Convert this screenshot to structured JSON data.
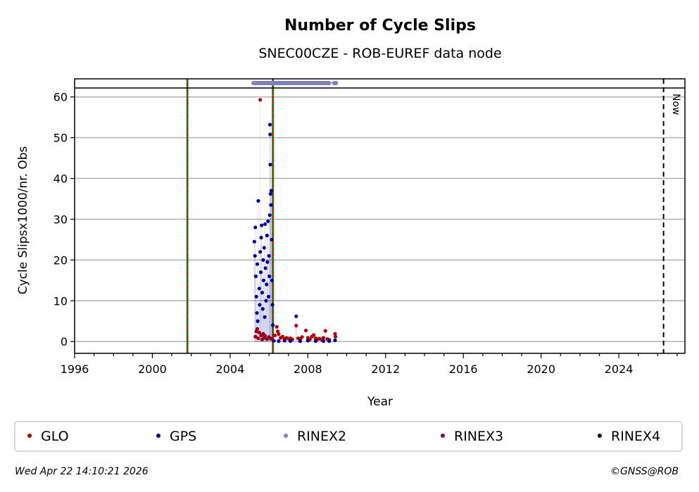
{
  "chart_data": {
    "type": "scatter",
    "title": "Number of Cycle Slips",
    "subtitle": "SNEC00CZE - ROB-EUREF data node",
    "xlabel": "Year",
    "ylabel": "Cycle Slipsx1000/nr. Obs",
    "xlim": [
      1996,
      2027.4
    ],
    "ylim": [
      -2.9,
      62.2
    ],
    "xticks": [
      1996,
      2000,
      2004,
      2008,
      2012,
      2016,
      2020,
      2024
    ],
    "yticks": [
      0,
      10,
      20,
      30,
      40,
      50,
      60
    ],
    "grid": "horizontal",
    "legend_position": "bottom",
    "now_label": "Now",
    "now_year": 2026.3,
    "event_lines": [
      2001.8,
      2006.2
    ],
    "rinex2_span": [
      [
        2005.2,
        2009.1
      ],
      [
        2009.35,
        2009.45
      ]
    ],
    "series": [
      {
        "name": "GLO",
        "color": "#b00000",
        "points": [
          [
            2005.55,
            59.3
          ],
          [
            2005.3,
            1.2
          ],
          [
            2005.35,
            2.5
          ],
          [
            2005.4,
            3.1
          ],
          [
            2005.45,
            0.8
          ],
          [
            2005.5,
            2.2
          ],
          [
            2005.6,
            1.5
          ],
          [
            2005.65,
            0.5
          ],
          [
            2005.7,
            1.9
          ],
          [
            2005.75,
            0.9
          ],
          [
            2005.8,
            1.4
          ],
          [
            2005.9,
            0.6
          ],
          [
            2006.0,
            1.1
          ],
          [
            2006.1,
            0.7
          ],
          [
            2006.3,
            1.5
          ],
          [
            2006.4,
            3.6
          ],
          [
            2006.45,
            2.5
          ],
          [
            2006.5,
            1.8
          ],
          [
            2006.6,
            0.9
          ],
          [
            2006.7,
            1.2
          ],
          [
            2006.8,
            0.6
          ],
          [
            2006.9,
            0.9
          ],
          [
            2007.0,
            0.7
          ],
          [
            2007.1,
            0.8
          ],
          [
            2007.2,
            0.5
          ],
          [
            2007.4,
            3.9
          ],
          [
            2007.5,
            0.8
          ],
          [
            2007.6,
            0.6
          ],
          [
            2007.7,
            1.1
          ],
          [
            2007.9,
            2.7
          ],
          [
            2008.0,
            0.9
          ],
          [
            2008.1,
            0.5
          ],
          [
            2008.2,
            1.2
          ],
          [
            2008.3,
            1.6
          ],
          [
            2008.4,
            0.8
          ],
          [
            2008.5,
            0.6
          ],
          [
            2008.6,
            0.7
          ],
          [
            2008.7,
            0.5
          ],
          [
            2008.8,
            0.9
          ],
          [
            2008.9,
            2.6
          ],
          [
            2009.0,
            0.6
          ],
          [
            2009.1,
            0.4
          ],
          [
            2009.4,
            1.9
          ],
          [
            2009.42,
            1.2
          ]
        ]
      },
      {
        "name": "GPS",
        "color": "#000099",
        "points": [
          [
            2005.25,
            24.5
          ],
          [
            2005.28,
            21
          ],
          [
            2005.3,
            28
          ],
          [
            2005.32,
            16
          ],
          [
            2005.35,
            11
          ],
          [
            2005.38,
            7
          ],
          [
            2005.4,
            19
          ],
          [
            2005.42,
            5
          ],
          [
            2005.45,
            34.5
          ],
          [
            2005.5,
            13
          ],
          [
            2005.52,
            9
          ],
          [
            2005.55,
            22
          ],
          [
            2005.58,
            17
          ],
          [
            2005.6,
            25.5
          ],
          [
            2005.62,
            28.5
          ],
          [
            2005.65,
            12
          ],
          [
            2005.68,
            8
          ],
          [
            2005.7,
            20
          ],
          [
            2005.72,
            15
          ],
          [
            2005.75,
            23
          ],
          [
            2005.78,
            6
          ],
          [
            2005.8,
            28.8
          ],
          [
            2005.82,
            18
          ],
          [
            2005.85,
            10
          ],
          [
            2005.88,
            14
          ],
          [
            2005.9,
            26
          ],
          [
            2005.92,
            19.5
          ],
          [
            2005.95,
            29.5
          ],
          [
            2005.98,
            11
          ],
          [
            2006.0,
            21
          ],
          [
            2006.02,
            16
          ],
          [
            2006.04,
            31
          ],
          [
            2006.05,
            53.2
          ],
          [
            2006.06,
            50.8
          ],
          [
            2006.07,
            43.4
          ],
          [
            2006.08,
            36.2
          ],
          [
            2006.1,
            33.5
          ],
          [
            2006.12,
            37
          ],
          [
            2006.14,
            25
          ],
          [
            2006.16,
            15
          ],
          [
            2006.18,
            9
          ],
          [
            2006.2,
            4
          ],
          [
            2006.25,
            0.2
          ],
          [
            2006.5,
            0.1
          ],
          [
            2006.8,
            0.2
          ],
          [
            2007.1,
            0.1
          ],
          [
            2007.4,
            6.2
          ],
          [
            2007.6,
            0.1
          ],
          [
            2008.0,
            0.2
          ],
          [
            2008.4,
            0.1
          ],
          [
            2008.8,
            0.1
          ],
          [
            2009.1,
            0.1
          ],
          [
            2009.4,
            0.3
          ]
        ]
      },
      {
        "name": "RINEX2",
        "color": "#8080c0",
        "points": []
      },
      {
        "name": "RINEX3",
        "color": "#800060",
        "points": []
      },
      {
        "name": "RINEX4",
        "color": "#200010",
        "points": []
      }
    ]
  },
  "footer": {
    "timestamp": "Wed Apr 22 14:10:21 2026",
    "credit": "©GNSS@ROB"
  }
}
